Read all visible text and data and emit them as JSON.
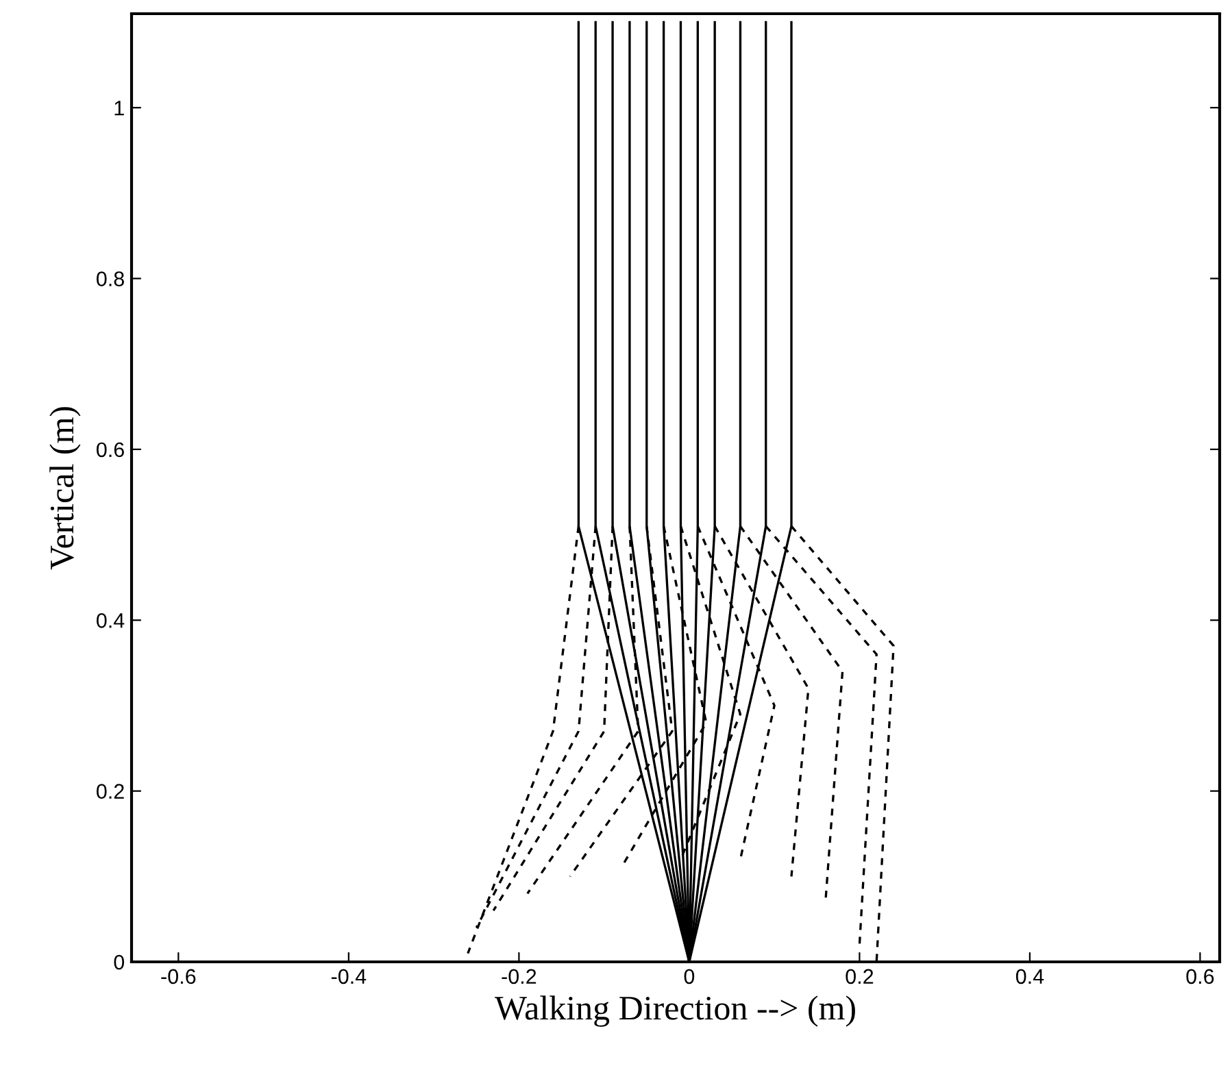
{
  "chart_data": {
    "type": "line",
    "xlabel": "Walking Direction --> (m)",
    "ylabel": "Vertical (m)",
    "xlim": [
      -0.655,
      0.623
    ],
    "ylim": [
      0,
      1.11
    ],
    "xticks": [
      -0.6,
      -0.4,
      -0.2,
      0,
      0.2,
      0.4,
      0.6
    ],
    "yticks": [
      0,
      0.2,
      0.4,
      0.6,
      0.8,
      1
    ],
    "grid": false,
    "legend": false,
    "marker": "none",
    "series": [
      {
        "color": "#000000",
        "line_style": "solid",
        "x": [
          -0.13,
          -0.13,
          0
        ],
        "values": [
          1.1,
          0.51,
          0
        ]
      },
      {
        "color": "#000000",
        "line_style": "dashed",
        "x": [
          -0.13,
          -0.16,
          -0.26
        ],
        "values": [
          0.51,
          0.27,
          0.01
        ]
      },
      {
        "color": "#000000",
        "line_style": "solid",
        "x": [
          -0.11,
          -0.11,
          0
        ],
        "values": [
          1.1,
          0.51,
          0
        ]
      },
      {
        "color": "#000000",
        "line_style": "dashed",
        "x": [
          -0.11,
          -0.13,
          -0.25
        ],
        "values": [
          0.51,
          0.27,
          0.04
        ]
      },
      {
        "color": "#000000",
        "line_style": "solid",
        "x": [
          -0.09,
          -0.09,
          0
        ],
        "values": [
          1.1,
          0.51,
          0
        ]
      },
      {
        "color": "#000000",
        "line_style": "dashed",
        "x": [
          -0.09,
          -0.1,
          -0.23
        ],
        "values": [
          0.51,
          0.27,
          0.06
        ]
      },
      {
        "color": "#000000",
        "line_style": "solid",
        "x": [
          -0.07,
          -0.07,
          0
        ],
        "values": [
          1.1,
          0.51,
          0
        ]
      },
      {
        "color": "#000000",
        "line_style": "dashed",
        "x": [
          -0.07,
          -0.06,
          -0.19
        ],
        "values": [
          0.51,
          0.27,
          0.08
        ]
      },
      {
        "color": "#000000",
        "line_style": "solid",
        "x": [
          -0.05,
          -0.05,
          0
        ],
        "values": [
          1.1,
          0.51,
          0
        ]
      },
      {
        "color": "#000000",
        "line_style": "dashed",
        "x": [
          -0.05,
          -0.02,
          -0.14
        ],
        "values": [
          0.51,
          0.27,
          0.1
        ]
      },
      {
        "color": "#000000",
        "line_style": "solid",
        "x": [
          -0.03,
          -0.03,
          0
        ],
        "values": [
          1.1,
          0.51,
          0
        ]
      },
      {
        "color": "#000000",
        "line_style": "dashed",
        "x": [
          -0.03,
          0.02,
          -0.08
        ],
        "values": [
          0.51,
          0.28,
          0.11
        ]
      },
      {
        "color": "#000000",
        "line_style": "solid",
        "x": [
          -0.01,
          -0.01,
          0
        ],
        "values": [
          1.1,
          0.51,
          0
        ]
      },
      {
        "color": "#000000",
        "line_style": "dashed",
        "x": [
          -0.01,
          0.06,
          -0.01
        ],
        "values": [
          0.51,
          0.29,
          0.12
        ]
      },
      {
        "color": "#000000",
        "line_style": "solid",
        "x": [
          0.01,
          0.01,
          0
        ],
        "values": [
          1.1,
          0.51,
          0
        ]
      },
      {
        "color": "#000000",
        "line_style": "dashed",
        "x": [
          0.01,
          0.1,
          0.06
        ],
        "values": [
          0.51,
          0.3,
          0.12
        ]
      },
      {
        "color": "#000000",
        "line_style": "solid",
        "x": [
          0.03,
          0.03,
          0
        ],
        "values": [
          1.1,
          0.51,
          0
        ]
      },
      {
        "color": "#000000",
        "line_style": "dashed",
        "x": [
          0.03,
          0.14,
          0.12
        ],
        "values": [
          0.51,
          0.32,
          0.1
        ]
      },
      {
        "color": "#000000",
        "line_style": "solid",
        "x": [
          0.06,
          0.06,
          0
        ],
        "values": [
          1.1,
          0.51,
          0
        ]
      },
      {
        "color": "#000000",
        "line_style": "dashed",
        "x": [
          0.06,
          0.18,
          0.16
        ],
        "values": [
          0.51,
          0.34,
          0.07
        ]
      },
      {
        "color": "#000000",
        "line_style": "solid",
        "x": [
          0.09,
          0.09,
          0
        ],
        "values": [
          1.1,
          0.51,
          0
        ]
      },
      {
        "color": "#000000",
        "line_style": "dashed",
        "x": [
          0.09,
          0.22,
          0.2
        ],
        "values": [
          0.51,
          0.36,
          0.02
        ]
      },
      {
        "color": "#000000",
        "line_style": "solid",
        "x": [
          0.12,
          0.12,
          0
        ],
        "values": [
          1.1,
          0.51,
          0
        ]
      },
      {
        "color": "#000000",
        "line_style": "dashed",
        "x": [
          0.12,
          0.24,
          0.22
        ],
        "values": [
          0.51,
          0.37,
          0.0
        ]
      }
    ]
  }
}
